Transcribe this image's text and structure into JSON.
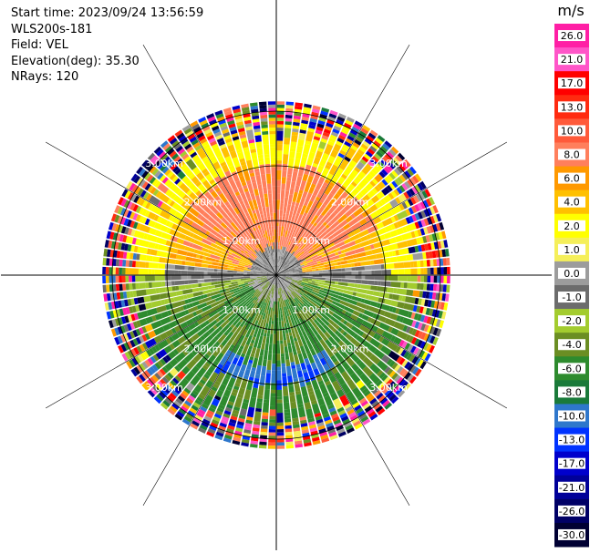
{
  "header": {
    "start_time": "Start time: 2023/09/24 13:56:59",
    "instrument": "WLS200s-181",
    "field": "Field: VEL",
    "elevation": "Elevation(deg): 35.30",
    "nrays": "NRays: 120"
  },
  "colorbar": {
    "unit": "m/s",
    "ticks": [
      "26.0",
      "21.0",
      "17.0",
      "13.0",
      "10.0",
      "8.0",
      "6.0",
      "4.0",
      "2.0",
      "1.0",
      "0.0",
      "-1.0",
      "-2.0",
      "-4.0",
      "-6.0",
      "-8.0",
      "-10.0",
      "-13.0",
      "-17.0",
      "-21.0",
      "-26.0",
      "-30.0"
    ],
    "colors": [
      "#ff1fa5",
      "#ff55c8",
      "#ff0000",
      "#ff2b10",
      "#ff5a3a",
      "#ff7f5c",
      "#ff9900",
      "#ffc000",
      "#ffff00",
      "#f5ef5a",
      "#9c9c9c",
      "#6c6c6c",
      "#a3cc2f",
      "#6b8e23",
      "#2e8b2e",
      "#1a7a3a",
      "#2e77cc",
      "#0033ff",
      "#0000cc",
      "#000099",
      "#000066",
      "#000033"
    ]
  },
  "chart_data": {
    "type": "ppi_scan",
    "field": "VEL",
    "unit": "m/s",
    "nrays": 120,
    "range_rings_km": [
      1.0,
      2.0,
      3.0
    ],
    "ring_labels": [
      "1.00km",
      "2.00km",
      "3.00km"
    ],
    "max_range_km": 3.2,
    "value_range": [
      -30.0,
      26.0
    ]
  }
}
